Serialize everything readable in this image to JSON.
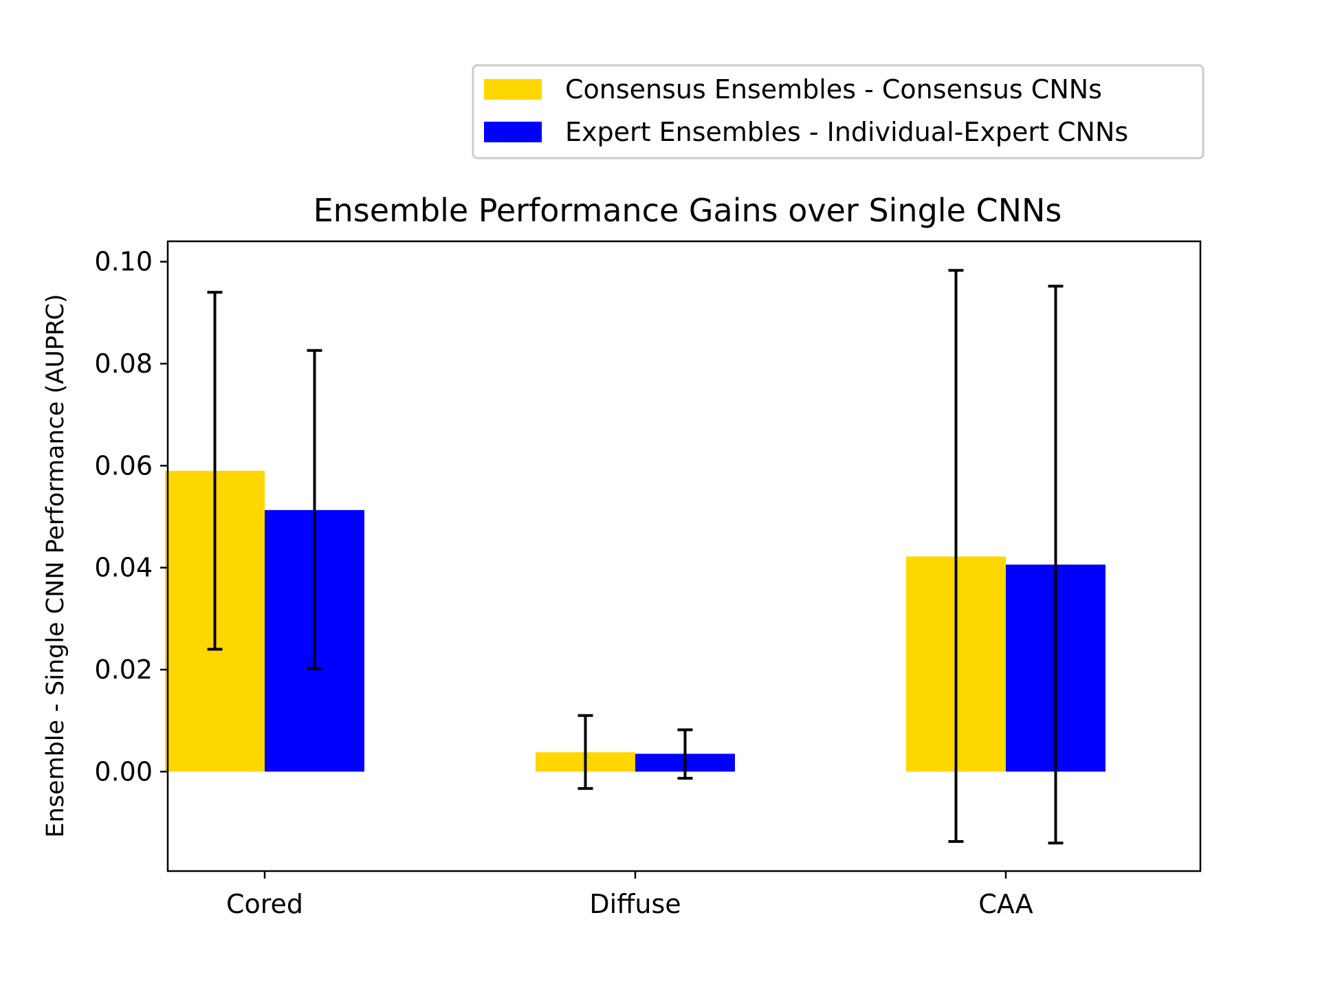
{
  "chart_data": {
    "type": "bar",
    "title": "Ensemble Performance Gains over Single CNNs",
    "xlabel": "",
    "ylabel": "Ensemble - Single CNN Performance (AUPRC)",
    "categories": [
      "Cored",
      "Diffuse",
      "CAA"
    ],
    "ylim": [
      -0.0195,
      0.104
    ],
    "yticks": [
      0.0,
      0.02,
      0.04,
      0.06,
      0.08,
      0.1
    ],
    "ytick_labels": [
      "0.00",
      "0.02",
      "0.04",
      "0.06",
      "0.08",
      "0.10"
    ],
    "grid": false,
    "legend_position": "top-right, above plot",
    "series": [
      {
        "name": "Consensus Ensembles - Consensus CNNs",
        "color": "#FFD700",
        "values": [
          0.059,
          0.0038,
          0.0422
        ],
        "error_low": [
          0.024,
          -0.0033,
          -0.0137
        ],
        "error_high": [
          0.094,
          0.011,
          0.0983
        ]
      },
      {
        "name": "Expert Ensembles - Individual-Expert CNNs",
        "color": "#0000FF",
        "values": [
          0.0513,
          0.0035,
          0.0406
        ],
        "error_low": [
          0.0202,
          -0.0013,
          -0.014
        ],
        "error_high": [
          0.0826,
          0.0082,
          0.0952
        ]
      }
    ]
  }
}
